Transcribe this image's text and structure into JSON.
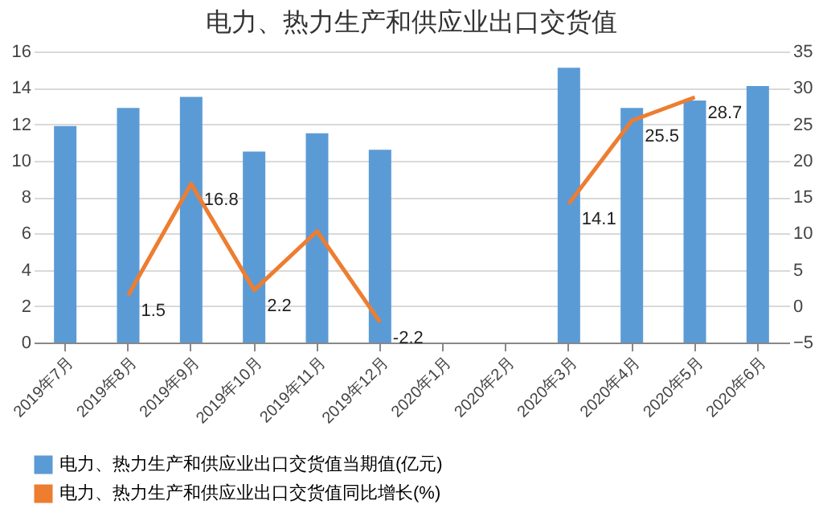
{
  "chart_data": {
    "type": "bar",
    "title": "电力、热力生产和供应业出口交货值",
    "categories": [
      "2019年7月",
      "2019年8月",
      "2019年9月",
      "2019年10月",
      "2019年11月",
      "2019年12月",
      "2020年1月",
      "2020年2月",
      "2020年3月",
      "2020年4月",
      "2020年5月",
      "2020年6月"
    ],
    "series": [
      {
        "name": "电力、热力生产和供应业出口交货值当期值(亿元)",
        "color": "#5b9bd5",
        "values": [
          11.9,
          12.9,
          13.5,
          10.5,
          11.5,
          10.6,
          null,
          null,
          15.1,
          12.9,
          13.3,
          14.1
        ]
      },
      {
        "name": "电力、热力生产和供应业出口交货值同比增长(%)",
        "type": "line",
        "axis": "y2",
        "color": "#ed7d31",
        "values": [
          null,
          1.5,
          16.8,
          2.2,
          10.3,
          -2.2,
          null,
          null,
          14.1,
          25.5,
          28.7,
          null
        ],
        "value_labels": [
          null,
          "1.5",
          "16.8",
          "2.2",
          null,
          "-2.2",
          null,
          null,
          "14.1",
          "25.5",
          "28.7",
          null
        ]
      }
    ],
    "ylim": [
      0,
      16
    ],
    "yticks": [
      0,
      2,
      4,
      6,
      8,
      10,
      12,
      14,
      16
    ],
    "y2lim": [
      -5,
      35
    ],
    "y2ticks": [
      -5,
      0,
      5,
      10,
      15,
      20,
      25,
      30,
      35
    ],
    "grid": "y",
    "legend": "bottom"
  }
}
